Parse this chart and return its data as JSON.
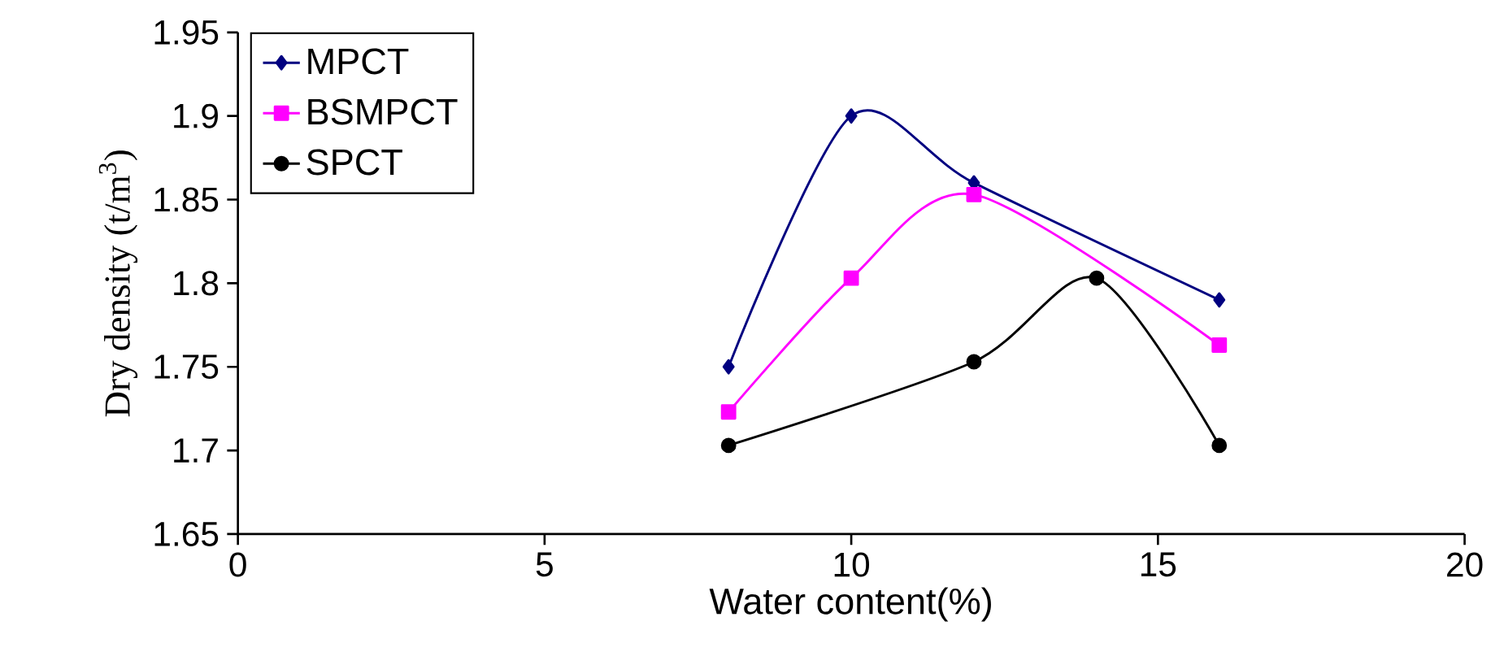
{
  "chart_data": {
    "type": "line",
    "xlabel": "Water content(%)",
    "ylabel": "Dry density (t/m$^{3}$)",
    "xlim": [
      0,
      20
    ],
    "xticks": [
      0,
      5,
      10,
      15,
      20
    ],
    "ylim": [
      1.65,
      1.95
    ],
    "yticks": [
      1.65,
      1.7,
      1.75,
      1.8,
      1.85,
      1.9,
      1.95
    ],
    "legend": "top left",
    "grid": false,
    "line_style": "solid",
    "series": [
      {
        "name": "MPCT",
        "color": "#000080",
        "marker": "diamond",
        "x": [
          8,
          10,
          12,
          16
        ],
        "values": [
          1.75,
          1.9,
          1.86,
          1.79
        ]
      },
      {
        "name": "BSMPCT",
        "color": "#ff00ff",
        "marker": "square",
        "x": [
          8,
          10,
          12,
          16
        ],
        "values": [
          1.723,
          1.803,
          1.853,
          1.763
        ]
      },
      {
        "name": "SPCT",
        "color": "#000000",
        "marker": "circle",
        "x": [
          8,
          12,
          14,
          16
        ],
        "values": [
          1.703,
          1.753,
          1.803,
          1.703
        ]
      }
    ]
  }
}
